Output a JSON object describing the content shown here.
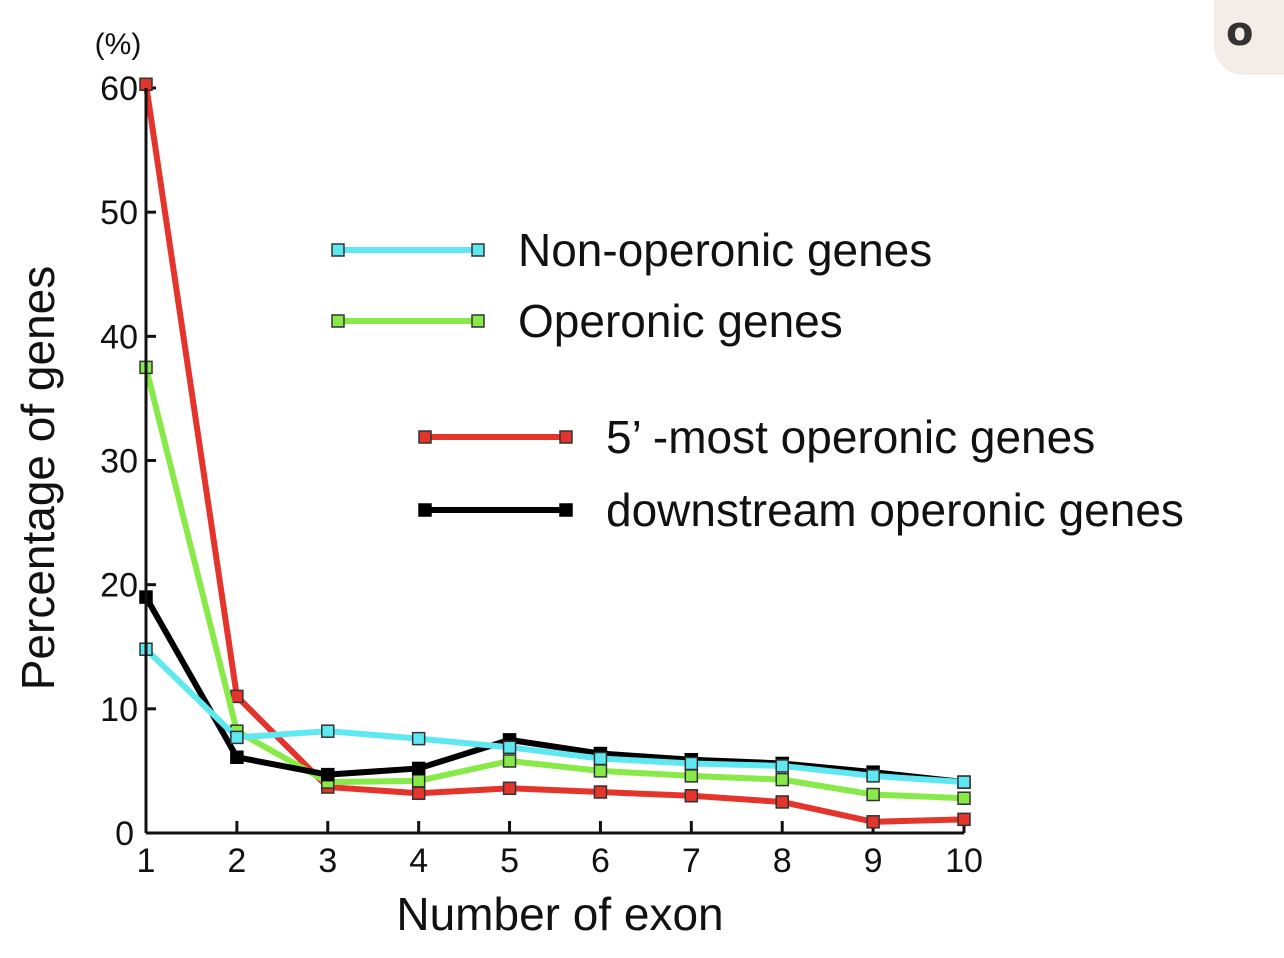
{
  "chart_data": {
    "type": "line",
    "title": "",
    "xlabel": "Number of exon",
    "ylabel": "Percentage of genes",
    "yunit": "(%)",
    "x": [
      1,
      2,
      3,
      4,
      5,
      6,
      7,
      8,
      9,
      10
    ],
    "xlim": [
      1,
      10
    ],
    "ylim": [
      0,
      60
    ],
    "yticks": [
      0,
      10,
      20,
      30,
      40,
      50,
      60
    ],
    "grid": false,
    "legend_position": "top-right",
    "series": [
      {
        "name": "Non-operonic genes",
        "color": "#5ee8f2",
        "values": [
          14.8,
          7.7,
          8.2,
          7.6,
          6.9,
          6.0,
          5.6,
          5.4,
          4.6,
          4.1
        ]
      },
      {
        "name": "Operonic genes",
        "color": "#88ea48",
        "values": [
          37.5,
          8.2,
          4.1,
          4.2,
          5.8,
          5.0,
          4.6,
          4.3,
          3.1,
          2.8
        ]
      },
      {
        "name": "5’ -most operonic genes",
        "color": "#e5342b",
        "values": [
          60.3,
          11.0,
          3.7,
          3.2,
          3.6,
          3.3,
          3.0,
          2.5,
          0.9,
          1.1
        ]
      },
      {
        "name": "downstream operonic genes",
        "color": "#000000",
        "values": [
          19.0,
          6.1,
          4.7,
          5.2,
          7.5,
          6.4,
          5.9,
          5.6,
          4.9,
          4.1
        ]
      }
    ]
  },
  "corner_badge": {
    "glyph": "o",
    "icon": "app-badge-icon"
  }
}
